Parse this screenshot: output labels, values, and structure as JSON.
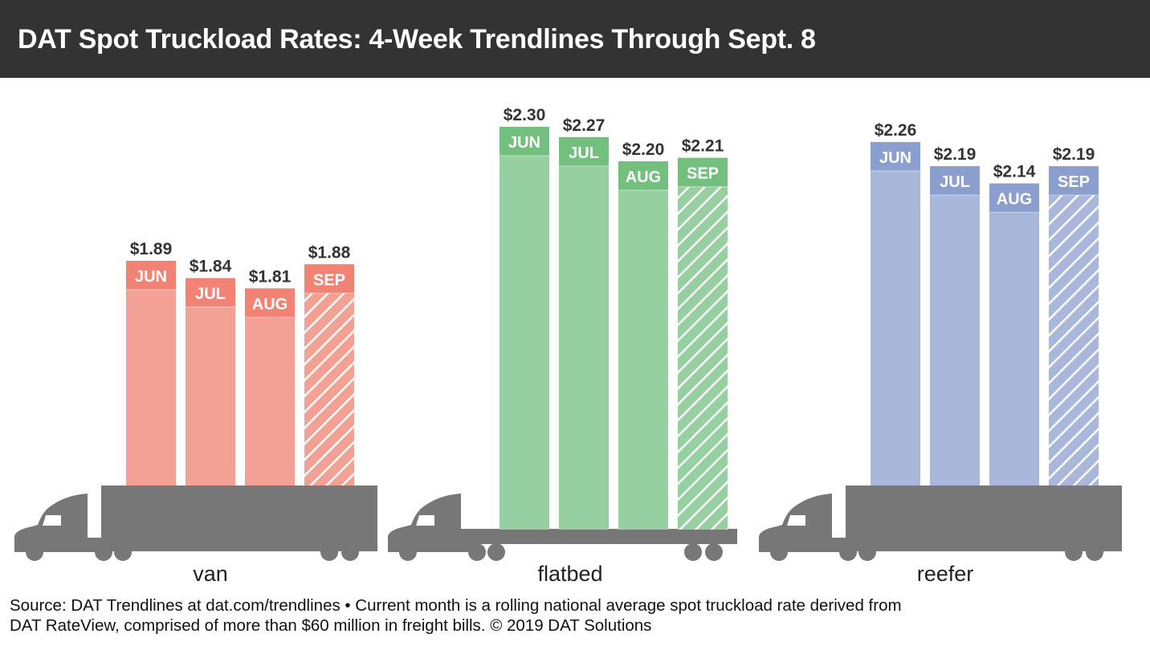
{
  "header": {
    "title": "DAT Spot Truckload Rates: 4-Week Trendlines Through Sept. 8"
  },
  "chart_data": {
    "type": "bar",
    "title": "DAT Spot Truckload Rates: 4-Week Trendlines Through Sept. 8",
    "categories": [
      "JUN",
      "JUL",
      "AUG",
      "SEP"
    ],
    "groups": [
      {
        "name": "van",
        "values": [
          1.89,
          1.84,
          1.81,
          1.88
        ],
        "labels": [
          "$1.89",
          "$1.84",
          "$1.81",
          "$1.88"
        ],
        "bar_color": "#f4a195",
        "label_color": "#f28374",
        "truck": "van"
      },
      {
        "name": "flatbed",
        "values": [
          2.3,
          2.27,
          2.2,
          2.21
        ],
        "labels": [
          "$2.30",
          "$2.27",
          "$2.20",
          "$2.21"
        ],
        "bar_color": "#96cfa0",
        "label_color": "#72bf7e",
        "truck": "flatbed"
      },
      {
        "name": "reefer",
        "values": [
          2.26,
          2.19,
          2.14,
          2.19
        ],
        "labels": [
          "$2.26",
          "$2.19",
          "$2.14",
          "$2.19"
        ],
        "bar_color": "#a9b8da",
        "label_color": "#8b9fcf",
        "truck": "van"
      }
    ],
    "hatched_category": "SEP",
    "truck_color": "#777777",
    "grid": false
  },
  "footer": {
    "source_line1": "Source: DAT Trendlines at dat.com/trendlines • Current month is a rolling national average spot truckload rate derived from",
    "source_line2": "DAT RateView, comprised of more than $60 million in freight bills. © 2019 DAT Solutions"
  }
}
